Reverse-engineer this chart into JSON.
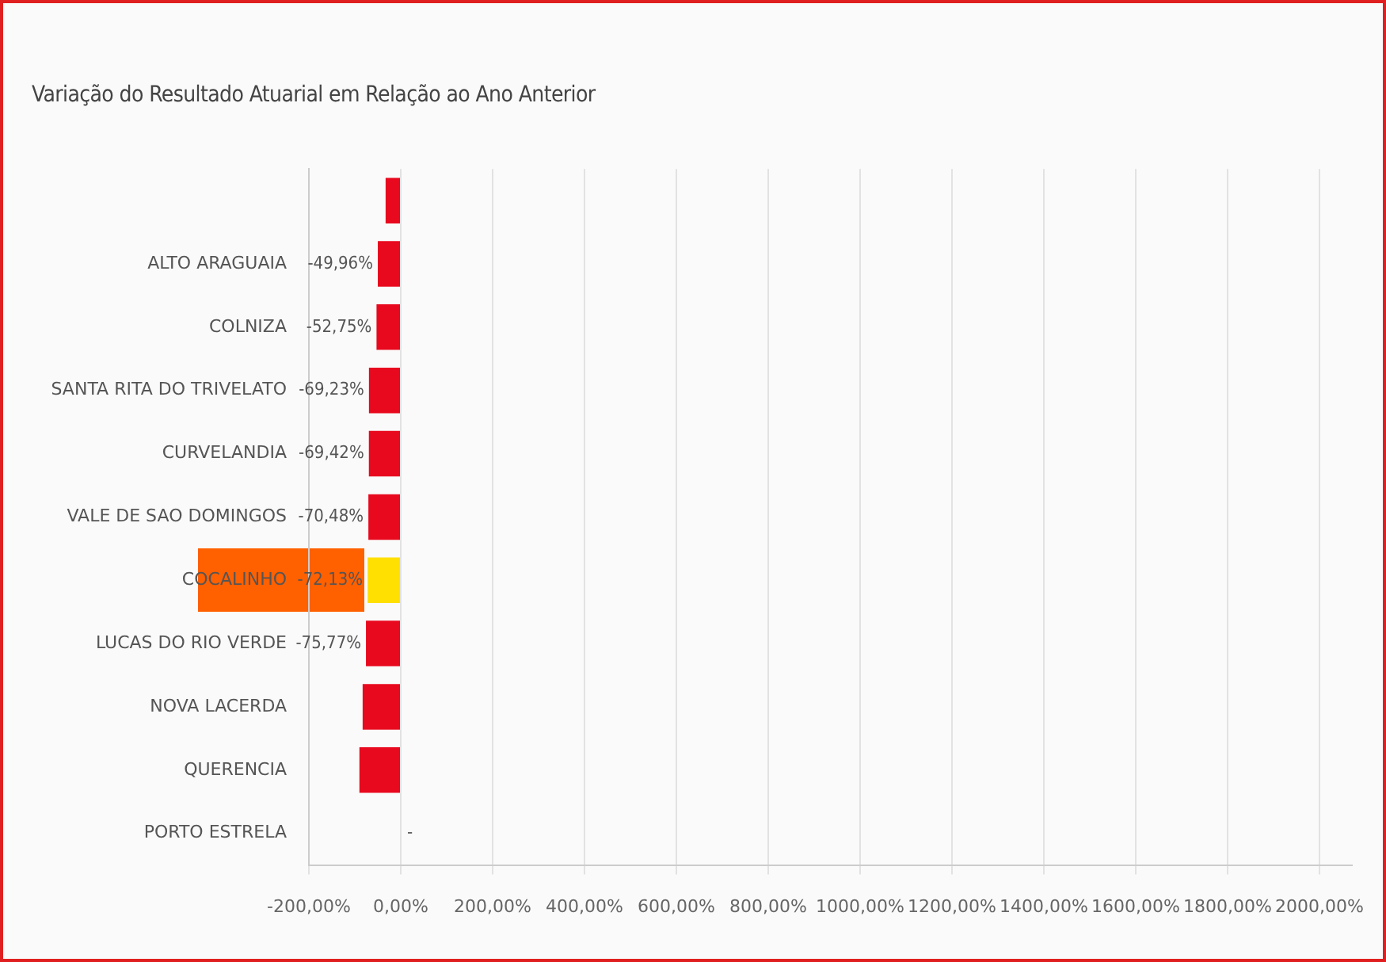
{
  "chart_data": {
    "type": "bar",
    "orientation": "horizontal",
    "title": "Variação do Resultado Atuarial em Relação ao Ano Anterior",
    "categories": [
      null,
      "ALTO ARAGUAIA",
      "COLNIZA",
      "SANTA RITA DO TRIVELATO",
      "CURVELANDIA",
      "VALE DE SAO DOMINGOS",
      "COCALINHO",
      "LUCAS DO RIO VERDE",
      "NOVA LACERDA",
      "QUERENCIA",
      "PORTO ESTRELA"
    ],
    "values": [
      -33,
      -49.96,
      -52.75,
      -69.23,
      -69.42,
      -70.48,
      -72.13,
      -75.77,
      -83,
      -90,
      null
    ],
    "value_labels": [
      null,
      "-49,96%",
      "-52,75%",
      "-69,23%",
      "-69,42%",
      "-70,48%",
      "-72,13%",
      "-75,77%",
      null,
      null,
      "-"
    ],
    "colors": [
      "#e8091e",
      "#e8091e",
      "#e8091e",
      "#e8091e",
      "#e8091e",
      "#e8091e",
      "#ffe000",
      "#e8091e",
      "#e8091e",
      "#e8091e",
      "#e8091e"
    ],
    "xlim": [
      -200,
      2070
    ],
    "xticks": [
      {
        "value": -200,
        "label": "-200,00%"
      },
      {
        "value": 0,
        "label": "0,00%"
      },
      {
        "value": 200,
        "label": "200,00%"
      },
      {
        "value": 400,
        "label": "400,00%"
      },
      {
        "value": 600,
        "label": "600,00%"
      },
      {
        "value": 800,
        "label": "800,00%"
      },
      {
        "value": 1000,
        "label": "1000,00%"
      },
      {
        "value": 1200,
        "label": "1200,00%"
      },
      {
        "value": 1400,
        "label": "1400,00%"
      },
      {
        "value": 1600,
        "label": "1600,00%"
      },
      {
        "value": 1800,
        "label": "1800,00%"
      },
      {
        "value": 2000,
        "label": "2000,00%"
      }
    ],
    "grid": "x",
    "legend": false
  }
}
